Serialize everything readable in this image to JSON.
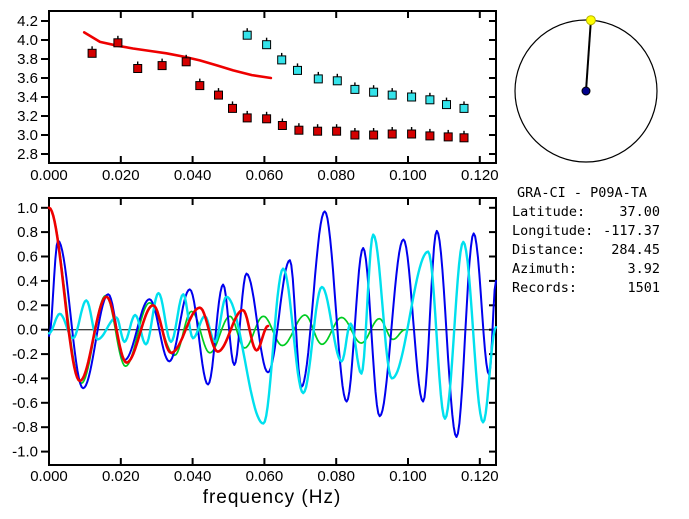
{
  "window": {
    "background": "#ffffff"
  },
  "info_panel": {
    "title": "GRA-CI - P09A-TA",
    "rows": [
      {
        "label": "Latitude:",
        "value": "37.00"
      },
      {
        "label": "Longitude:",
        "value": "-117.37"
      },
      {
        "label": "Distance:",
        "value": "284.45"
      },
      {
        "label": "Azimuth:",
        "value": "3.92"
      },
      {
        "label": "Records:",
        "value": "1501"
      }
    ]
  },
  "azimuth_dial": {
    "azimuth_deg": 3.92,
    "ring_color": "#000000",
    "pointer_color": "#000000",
    "center_dot_color": "#00008b",
    "rim_dot_color": "#ffff00"
  },
  "chart_data": [
    {
      "name": "dispersion-chart",
      "type": "scatter",
      "title": "",
      "xlabel": "",
      "ylabel": "",
      "grid": false,
      "xlim": [
        0,
        0.1245
      ],
      "ylim": [
        2.705,
        4.305
      ],
      "x_ticks": {
        "values": [
          0,
          0.02,
          0.04,
          0.06,
          0.08,
          0.1,
          0.12
        ],
        "labels": [
          "0.000",
          "0.020",
          "0.040",
          "0.060",
          "0.080",
          "0.100",
          "0.120"
        ]
      },
      "y_ticks": {
        "values": [
          2.8,
          3.0,
          3.2,
          3.4,
          3.6,
          3.8,
          4.0,
          4.2
        ],
        "labels": [
          "2.8",
          "3.0",
          "3.2",
          "3.4",
          "3.6",
          "3.8",
          "4.0",
          "4.2"
        ]
      },
      "series": [
        {
          "name": "reference-dispersion-curve",
          "type": "line",
          "color": "#ee0000",
          "width": 2.6,
          "points": [
            [
              0.0098,
              4.08
            ],
            [
              0.0142,
              3.98
            ],
            [
              0.019,
              3.94
            ],
            [
              0.0234,
              3.91
            ],
            [
              0.028,
              3.885
            ],
            [
              0.0327,
              3.86
            ],
            [
              0.0375,
              3.825
            ],
            [
              0.042,
              3.785
            ],
            [
              0.047,
              3.73
            ],
            [
              0.0513,
              3.68
            ],
            [
              0.0565,
              3.63
            ],
            [
              0.0618,
              3.6
            ]
          ]
        },
        {
          "name": "group-velocity-picks",
          "type": "squares",
          "color": "#d40000",
          "points": [
            [
              0.012,
              3.86
            ],
            [
              0.0192,
              3.97
            ],
            [
              0.0247,
              3.7
            ],
            [
              0.0315,
              3.73
            ],
            [
              0.0382,
              3.77
            ],
            [
              0.042,
              3.52
            ],
            [
              0.0472,
              3.42
            ],
            [
              0.0511,
              3.28
            ],
            [
              0.0552,
              3.18
            ],
            [
              0.0606,
              3.17
            ],
            [
              0.065,
              3.1
            ],
            [
              0.0696,
              3.05
            ],
            [
              0.0748,
              3.04
            ],
            [
              0.0801,
              3.04
            ],
            [
              0.0852,
              3.0
            ],
            [
              0.0904,
              3.0
            ],
            [
              0.0956,
              3.01
            ],
            [
              0.101,
              3.01
            ],
            [
              0.1061,
              2.99
            ],
            [
              0.1112,
              2.98
            ],
            [
              0.1156,
              2.97
            ]
          ]
        },
        {
          "name": "phase-velocity-picks",
          "type": "squares",
          "color": "#35e3ea",
          "points": [
            [
              0.0552,
              4.05
            ],
            [
              0.0606,
              3.95
            ],
            [
              0.0648,
              3.79
            ],
            [
              0.0692,
              3.68
            ],
            [
              0.075,
              3.59
            ],
            [
              0.0803,
              3.57
            ],
            [
              0.0852,
              3.48
            ],
            [
              0.0904,
              3.45
            ],
            [
              0.0956,
              3.42
            ],
            [
              0.101,
              3.4
            ],
            [
              0.1061,
              3.37
            ],
            [
              0.1107,
              3.32
            ],
            [
              0.1156,
              3.28
            ]
          ]
        }
      ]
    },
    {
      "name": "correlation-chart",
      "type": "line",
      "title": "",
      "xlabel": "frequency (Hz)",
      "ylabel": "",
      "grid": false,
      "zero_line": true,
      "xlim": [
        0,
        0.1245
      ],
      "ylim": [
        -1.11,
        1.08
      ],
      "x_ticks": {
        "values": [
          0,
          0.02,
          0.04,
          0.06,
          0.08,
          0.1,
          0.12
        ],
        "labels": [
          "0.000",
          "0.020",
          "0.040",
          "0.060",
          "0.080",
          "0.100",
          "0.120"
        ]
      },
      "y_ticks": {
        "values": [
          -1.0,
          -0.8,
          -0.6,
          -0.4,
          -0.2,
          0.0,
          0.2,
          0.4,
          0.6,
          0.8,
          1.0
        ],
        "labels": [
          "-1.0",
          "-0.8",
          "-0.6",
          "-0.4",
          "-0.2",
          "0.0",
          "0.2",
          "0.4",
          "0.6",
          "0.8",
          "1.0"
        ]
      },
      "series": [
        {
          "name": "green-trace",
          "type": "wave",
          "color": "#00cc22",
          "width": 1.7,
          "points": [
            [
              0.0,
              1.0
            ],
            [
              0.009,
              -0.44
            ],
            [
              0.0158,
              0.28
            ],
            [
              0.0213,
              -0.3
            ],
            [
              0.028,
              0.22
            ],
            [
              0.035,
              -0.21
            ],
            [
              0.0397,
              0.15
            ],
            [
              0.0448,
              -0.19
            ],
            [
              0.0504,
              0.11
            ],
            [
              0.0545,
              -0.15
            ],
            [
              0.0597,
              0.11
            ],
            [
              0.065,
              -0.13
            ],
            [
              0.0713,
              0.12
            ],
            [
              0.076,
              -0.12
            ],
            [
              0.0815,
              0.1
            ],
            [
              0.087,
              -0.11
            ],
            [
              0.092,
              0.09
            ],
            [
              0.0958,
              -0.08
            ],
            [
              0.0992,
              0.0
            ]
          ]
        },
        {
          "name": "blue-trace",
          "type": "wave",
          "color": "#0000ee",
          "width": 2.0,
          "points": [
            [
              0.0,
              -0.05
            ],
            [
              0.0025,
              0.73
            ],
            [
              0.0095,
              -0.48
            ],
            [
              0.0165,
              0.29
            ],
            [
              0.021,
              -0.25
            ],
            [
              0.028,
              0.25
            ],
            [
              0.0335,
              -0.26
            ],
            [
              0.0392,
              0.33
            ],
            [
              0.0443,
              -0.45
            ],
            [
              0.0485,
              0.37
            ],
            [
              0.0516,
              -0.29
            ],
            [
              0.055,
              0.46
            ],
            [
              0.061,
              -0.35
            ],
            [
              0.0671,
              0.57
            ],
            [
              0.0703,
              -0.47
            ],
            [
              0.0768,
              0.97
            ],
            [
              0.0829,
              -0.59
            ],
            [
              0.0875,
              0.67
            ],
            [
              0.0921,
              -0.71
            ],
            [
              0.0987,
              0.74
            ],
            [
              0.1042,
              -0.59
            ],
            [
              0.108,
              0.81
            ],
            [
              0.1135,
              -0.88
            ],
            [
              0.1183,
              0.79
            ],
            [
              0.1226,
              -0.37
            ],
            [
              0.1245,
              0.4
            ]
          ]
        },
        {
          "name": "cyan-trace",
          "type": "wave",
          "color": "#00e0ee",
          "width": 2.4,
          "points": [
            [
              0.0,
              -0.03
            ],
            [
              0.003,
              0.13
            ],
            [
              0.0067,
              -0.07
            ],
            [
              0.0104,
              0.24
            ],
            [
              0.0135,
              -0.08
            ],
            [
              0.0188,
              0.1
            ],
            [
              0.021,
              -0.1
            ],
            [
              0.024,
              0.12
            ],
            [
              0.027,
              -0.12
            ],
            [
              0.0305,
              0.3
            ],
            [
              0.034,
              -0.1
            ],
            [
              0.0374,
              0.29
            ],
            [
              0.0401,
              -0.07
            ],
            [
              0.0434,
              0.11
            ],
            [
              0.0462,
              -0.1
            ],
            [
              0.0494,
              0.27
            ],
            [
              0.0597,
              -0.77
            ],
            [
              0.0652,
              0.5
            ],
            [
              0.0708,
              -0.52
            ],
            [
              0.076,
              0.35
            ],
            [
              0.0815,
              -0.26
            ],
            [
              0.084,
              0.05
            ],
            [
              0.087,
              -0.36
            ],
            [
              0.0903,
              0.78
            ],
            [
              0.0955,
              -0.4
            ],
            [
              0.1056,
              0.64
            ],
            [
              0.1103,
              -0.73
            ],
            [
              0.1154,
              0.72
            ],
            [
              0.1209,
              -0.76
            ],
            [
              0.1245,
              0.02
            ]
          ]
        },
        {
          "name": "red-trace",
          "type": "wave",
          "color": "#ee0000",
          "width": 2.6,
          "points": [
            [
              0.0,
              1.0
            ],
            [
              0.0086,
              -0.42
            ],
            [
              0.016,
              0.27
            ],
            [
              0.0216,
              -0.27
            ],
            [
              0.029,
              0.2
            ],
            [
              0.034,
              -0.19
            ],
            [
              0.042,
              0.18
            ],
            [
              0.047,
              -0.18
            ],
            [
              0.054,
              0.16
            ],
            [
              0.0578,
              -0.17
            ],
            [
              0.061,
              0.03
            ]
          ]
        }
      ]
    }
  ]
}
